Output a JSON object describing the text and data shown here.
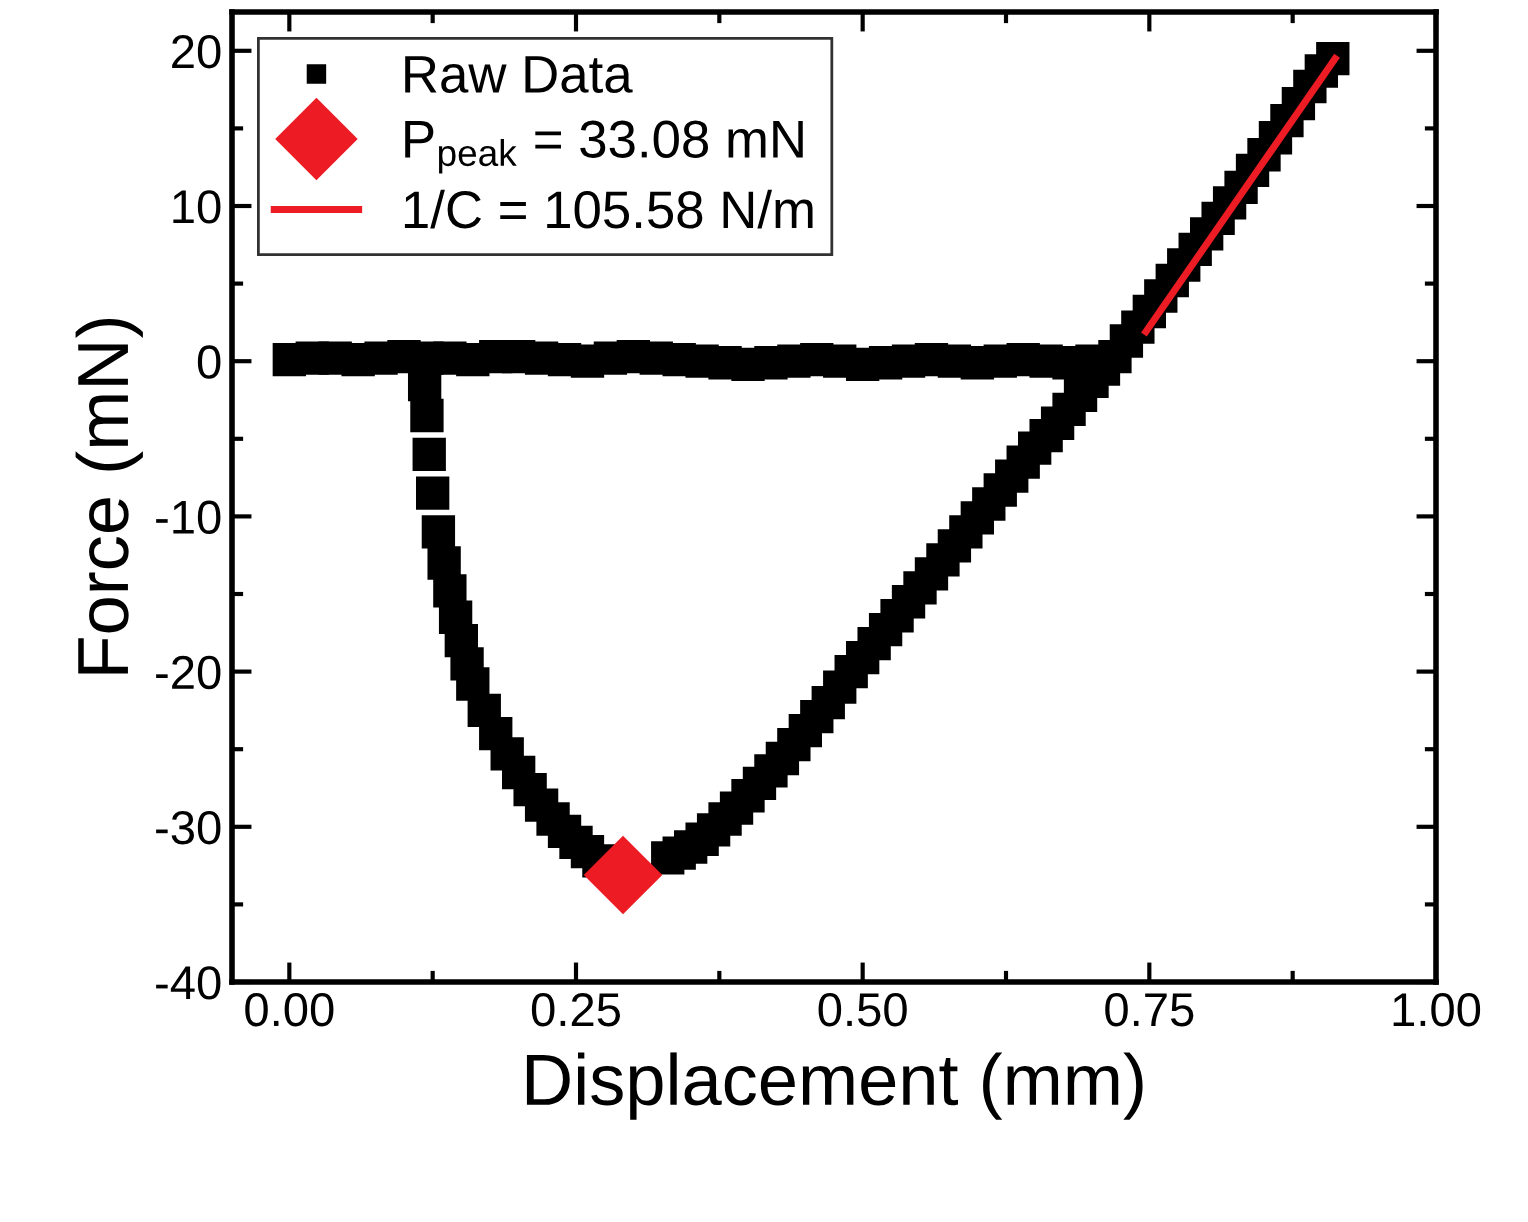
{
  "chart_data": {
    "type": "scatter",
    "xlabel": "Displacement (mm)",
    "ylabel": "Force (mN)",
    "xlim": [
      -0.05,
      1.0
    ],
    "ylim": [
      -40,
      22.5
    ],
    "xticks": [
      {
        "value": 0,
        "label": "0.00"
      },
      0.25,
      {
        "value": 0.5,
        "label": "0.50"
      },
      0.75,
      {
        "value": 1,
        "label": "1.00"
      }
    ],
    "yticks": [
      -40,
      -30,
      -20,
      -10,
      0,
      10,
      20
    ],
    "legend": "top left",
    "series": [
      {
        "name": "Raw Data",
        "marker": "square",
        "color": "#000000",
        "x": [
          0.0,
          0.02,
          0.04,
          0.06,
          0.08,
          0.1,
          0.12,
          0.14,
          0.16,
          0.18,
          0.2,
          0.22,
          0.24,
          0.26,
          0.28,
          0.3,
          0.32,
          0.34,
          0.36,
          0.38,
          0.4,
          0.42,
          0.44,
          0.46,
          0.48,
          0.5,
          0.52,
          0.54,
          0.56,
          0.58,
          0.6,
          0.62,
          0.64,
          0.66,
          0.68,
          0.7,
          0.72,
          0.73,
          0.74,
          0.75,
          0.76,
          0.77,
          0.78,
          0.79,
          0.8,
          0.81,
          0.82,
          0.83,
          0.84,
          0.85,
          0.86,
          0.87,
          0.88,
          0.89,
          0.9,
          0.91,
          0.71,
          0.7,
          0.69,
          0.68,
          0.67,
          0.66,
          0.65,
          0.64,
          0.63,
          0.62,
          0.61,
          0.6,
          0.59,
          0.58,
          0.57,
          0.56,
          0.55,
          0.54,
          0.53,
          0.52,
          0.51,
          0.5,
          0.49,
          0.48,
          0.47,
          0.46,
          0.45,
          0.44,
          0.43,
          0.42,
          0.41,
          0.4,
          0.39,
          0.38,
          0.37,
          0.36,
          0.35,
          0.34,
          0.33,
          0.27,
          0.26,
          0.25,
          0.24,
          0.23,
          0.22,
          0.21,
          0.2,
          0.19,
          0.18,
          0.17,
          0.16,
          0.155,
          0.15,
          0.145,
          0.14,
          0.135,
          0.13,
          0.125,
          0.122,
          0.12,
          0.118
        ],
        "values": [
          0.1,
          0.2,
          0.2,
          0.1,
          0.2,
          0.3,
          0.2,
          0.2,
          0.1,
          0.3,
          0.3,
          0.2,
          0.1,
          0.0,
          0.2,
          0.3,
          0.2,
          0.1,
          0.0,
          -0.1,
          -0.2,
          -0.1,
          0.0,
          0.1,
          0.0,
          -0.2,
          -0.1,
          0.0,
          0.1,
          0.0,
          -0.1,
          0.0,
          0.1,
          0.0,
          -0.1,
          0.0,
          0.3,
          1.3,
          2.2,
          3.2,
          4.2,
          5.2,
          6.2,
          7.2,
          8.2,
          9.2,
          10.2,
          11.2,
          12.3,
          13.3,
          14.4,
          15.5,
          16.6,
          17.7,
          18.7,
          19.5,
          -0.5,
          -1.3,
          -2.2,
          -3.1,
          -4.0,
          -4.8,
          -5.6,
          -6.5,
          -7.4,
          -8.3,
          -9.2,
          -10.1,
          -11.0,
          -11.9,
          -12.8,
          -13.7,
          -14.6,
          -15.5,
          -16.4,
          -17.3,
          -18.2,
          -19.1,
          -20.0,
          -21.0,
          -22.0,
          -22.9,
          -23.8,
          -24.7,
          -25.6,
          -26.4,
          -27.2,
          -28.0,
          -28.8,
          -29.5,
          -30.2,
          -30.8,
          -31.3,
          -31.7,
          -32.0,
          -32.2,
          -31.6,
          -31.0,
          -30.3,
          -29.5,
          -28.6,
          -27.6,
          -26.5,
          -25.3,
          -24.0,
          -22.5,
          -20.8,
          -19.5,
          -18.0,
          -16.5,
          -14.8,
          -13.0,
          -11.0,
          -8.5,
          -6.0,
          -3.5,
          -1.5
        ]
      },
      {
        "name": "P$_{peak}$ = 33.08 mN",
        "marker": "diamond",
        "color": "#ed1c24",
        "x": [
          0.291
        ],
        "values": [
          -33.1
        ]
      },
      {
        "name": "1/C = 105.58 N/m",
        "type": "line",
        "marker": "none",
        "line_style": "solid",
        "color": "#ed1c24",
        "x": [
          0.747,
          0.912
        ],
        "values": [
          1.9,
          19.5
        ]
      }
    ]
  }
}
